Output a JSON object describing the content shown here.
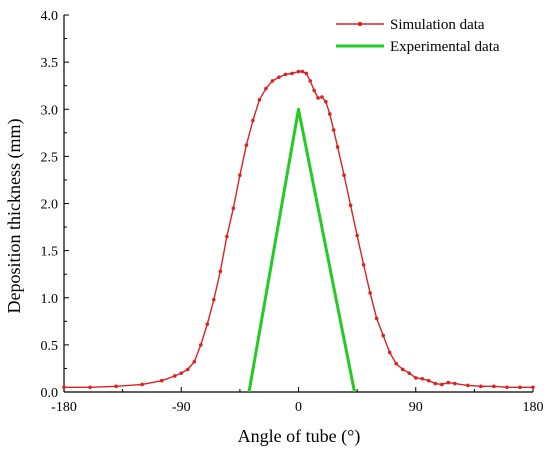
{
  "chart_data": {
    "type": "line",
    "xlabel": "Angle of tube (°)",
    "ylabel": "Deposition thickness (mm)",
    "xlim": [
      -180,
      180
    ],
    "ylim": [
      0,
      4.0
    ],
    "xticks": [
      -180,
      -90,
      0,
      90,
      180
    ],
    "xtick_labels": [
      "-180",
      "-90",
      "0",
      "90",
      "180"
    ],
    "yticks": [
      0,
      0.5,
      1.0,
      1.5,
      2.0,
      2.5,
      3.0,
      3.5,
      4.0
    ],
    "ytick_labels": [
      "0.0",
      "0.5",
      "1.0",
      "1.5",
      "2.0",
      "2.5",
      "3.0",
      "3.5",
      "4.0"
    ],
    "grid": false,
    "legend_position": "top-right",
    "series": [
      {
        "name": "Simulation data",
        "color": "#e02020",
        "marker": "dot",
        "x": [
          -180,
          -160,
          -140,
          -120,
          -105,
          -95,
          -90,
          -85,
          -80,
          -75,
          -70,
          -65,
          -60,
          -55,
          -50,
          -45,
          -40,
          -35,
          -30,
          -25,
          -20,
          -15,
          -10,
          -5,
          0,
          3,
          6,
          9,
          12,
          15,
          18,
          21,
          24,
          27,
          30,
          35,
          40,
          45,
          50,
          55,
          60,
          65,
          70,
          75,
          80,
          85,
          90,
          95,
          100,
          105,
          110,
          115,
          120,
          130,
          140,
          150,
          160,
          170,
          180
        ],
        "y": [
          0.05,
          0.05,
          0.06,
          0.08,
          0.12,
          0.17,
          0.2,
          0.24,
          0.32,
          0.5,
          0.72,
          0.98,
          1.28,
          1.65,
          1.95,
          2.3,
          2.62,
          2.88,
          3.1,
          3.22,
          3.3,
          3.34,
          3.37,
          3.38,
          3.4,
          3.4,
          3.38,
          3.3,
          3.2,
          3.12,
          3.13,
          3.08,
          2.95,
          2.78,
          2.6,
          2.3,
          1.98,
          1.66,
          1.35,
          1.05,
          0.78,
          0.6,
          0.42,
          0.3,
          0.24,
          0.2,
          0.15,
          0.14,
          0.12,
          0.09,
          0.08,
          0.1,
          0.09,
          0.07,
          0.06,
          0.06,
          0.05,
          0.05,
          0.05
        ]
      },
      {
        "name": "Experimental data",
        "color": "#22cc22",
        "marker": "none",
        "x": [
          -38,
          0,
          43
        ],
        "y": [
          0,
          3.0,
          0
        ]
      }
    ]
  }
}
